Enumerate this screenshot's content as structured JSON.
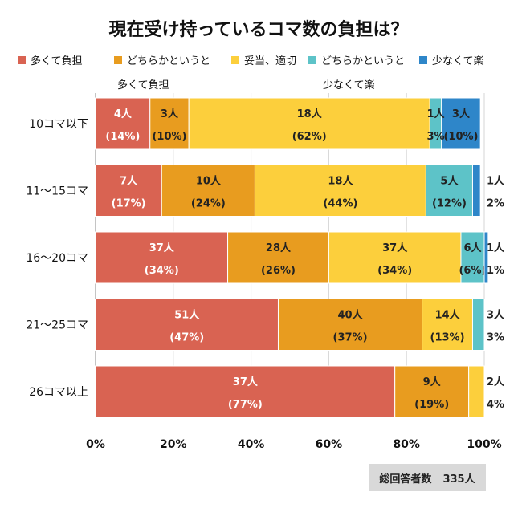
{
  "chart_data": {
    "type": "bar",
    "orientation": "horizontal",
    "stacked": true,
    "title": "現在受け持っているコマ数の負担は？",
    "categories": [
      "10コマ以下",
      "11〜15コマ",
      "16〜20コマ",
      "21〜25コマ",
      "26コマ以上"
    ],
    "series": [
      {
        "name": "多くて負担",
        "color": "#d96352",
        "counts": [
          4,
          7,
          37,
          51,
          37
        ],
        "percents": [
          14,
          17,
          34,
          47,
          77
        ]
      },
      {
        "name": "どちらかというと",
        "color": "#e89c1f",
        "counts": [
          3,
          10,
          28,
          40,
          9
        ],
        "percents": [
          10,
          24,
          26,
          37,
          19
        ]
      },
      {
        "name": "妥当、適切",
        "color": "#fccf3c",
        "counts": [
          18,
          18,
          37,
          14,
          2
        ],
        "percents": [
          62,
          44,
          34,
          13,
          4
        ]
      },
      {
        "name": "どちらかというと",
        "color": "#5dc3c8",
        "counts": [
          1,
          5,
          6,
          3,
          0
        ],
        "percents": [
          3,
          12,
          6,
          3,
          0
        ]
      },
      {
        "name": "少なくて楽",
        "color": "#2e86c9",
        "counts": [
          3,
          1,
          1,
          0,
          0
        ],
        "percents": [
          10,
          2,
          1,
          0,
          0
        ]
      }
    ],
    "count_suffix": "人",
    "xlim": [
      0,
      100
    ],
    "xticks": [
      "0%",
      "20%",
      "40%",
      "60%",
      "80%",
      "100%"
    ],
    "scale_left_label": "多くて負担",
    "scale_right_label": "少なくて楽",
    "legend_position": "top",
    "grid": true
  },
  "total": {
    "label": "総回答者数",
    "value": "335人"
  }
}
